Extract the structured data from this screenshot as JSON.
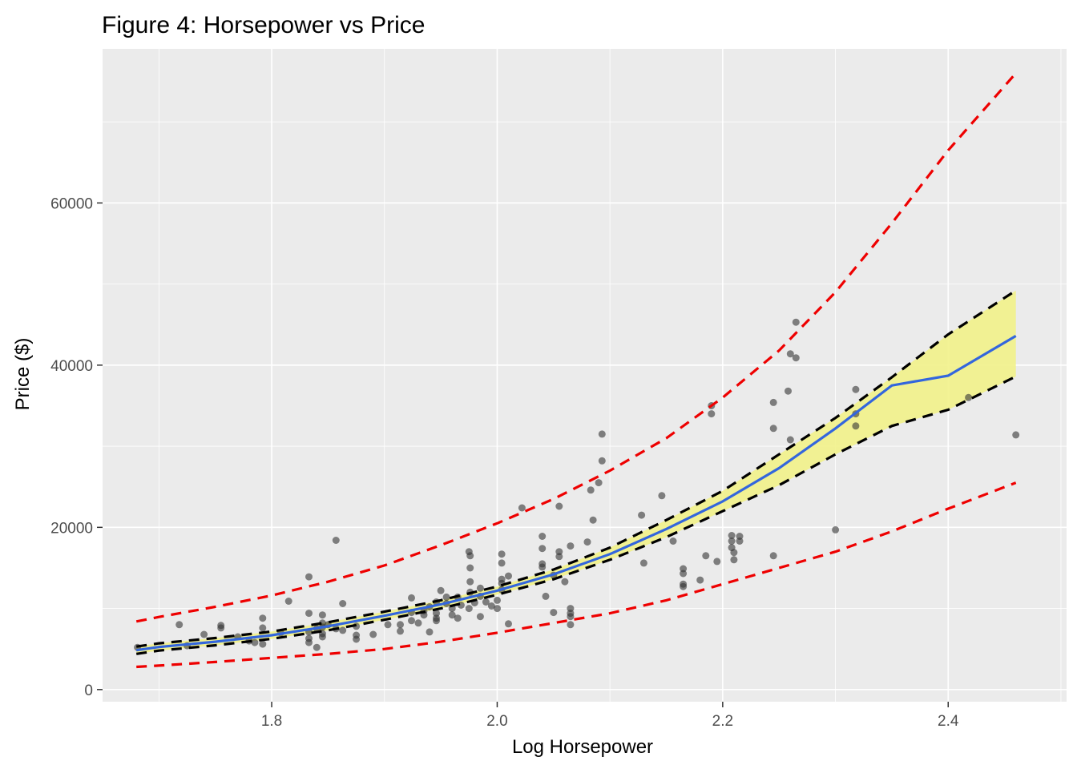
{
  "chart_data": {
    "type": "scatter",
    "title": "Figure 4: Horsepower vs Price",
    "xlabel": "Log Horsepower",
    "ylabel": "Price ($)",
    "xlim": [
      1.65,
      2.505
    ],
    "ylim": [
      -1500,
      79000
    ],
    "x_ticks": [
      1.8,
      2.0,
      2.2,
      2.4
    ],
    "x_tick_labels": [
      "1.8",
      "2.0",
      "2.2",
      "2.4"
    ],
    "y_ticks": [
      0,
      20000,
      40000,
      60000
    ],
    "y_tick_labels": [
      "0",
      "20000",
      "40000",
      "60000"
    ],
    "grid": true,
    "colors": {
      "panel": "#ebebeb",
      "grid": "#ffffff",
      "points": "#333333",
      "fit": "#3366dd",
      "confidence_band": "#f2f28a",
      "confidence_lines": "#000000",
      "prediction_lines": "#ee0000"
    },
    "points": [
      [
        1.681,
        5200
      ],
      [
        1.718,
        8000
      ],
      [
        1.725,
        5400
      ],
      [
        1.74,
        6800
      ],
      [
        1.755,
        7600
      ],
      [
        1.755,
        7900
      ],
      [
        1.77,
        6500
      ],
      [
        1.78,
        6000
      ],
      [
        1.785,
        5800
      ],
      [
        1.792,
        7600
      ],
      [
        1.792,
        8800
      ],
      [
        1.792,
        5600
      ],
      [
        1.808,
        7000
      ],
      [
        1.815,
        10900
      ],
      [
        1.833,
        13900
      ],
      [
        1.833,
        9400
      ],
      [
        1.833,
        7100
      ],
      [
        1.833,
        6300
      ],
      [
        1.833,
        5800
      ],
      [
        1.84,
        5200
      ],
      [
        1.84,
        7500
      ],
      [
        1.845,
        9200
      ],
      [
        1.845,
        8200
      ],
      [
        1.845,
        7700
      ],
      [
        1.845,
        6900
      ],
      [
        1.845,
        6500
      ],
      [
        1.85,
        8000
      ],
      [
        1.857,
        18400
      ],
      [
        1.857,
        7500
      ],
      [
        1.863,
        10600
      ],
      [
        1.863,
        7300
      ],
      [
        1.875,
        7800
      ],
      [
        1.875,
        6700
      ],
      [
        1.875,
        6200
      ],
      [
        1.89,
        6800
      ],
      [
        1.903,
        8000
      ],
      [
        1.914,
        8000
      ],
      [
        1.914,
        7200
      ],
      [
        1.924,
        11300
      ],
      [
        1.924,
        9500
      ],
      [
        1.924,
        8500
      ],
      [
        1.93,
        8200
      ],
      [
        1.935,
        9700
      ],
      [
        1.935,
        9200
      ],
      [
        1.94,
        10200
      ],
      [
        1.94,
        7100
      ],
      [
        1.946,
        10800
      ],
      [
        1.946,
        9400
      ],
      [
        1.946,
        8800
      ],
      [
        1.946,
        8500
      ],
      [
        1.95,
        12200
      ],
      [
        1.955,
        11400
      ],
      [
        1.955,
        10600
      ],
      [
        1.96,
        10000
      ],
      [
        1.96,
        9200
      ],
      [
        1.965,
        11400
      ],
      [
        1.965,
        8800
      ],
      [
        1.968,
        10400
      ],
      [
        1.975,
        10000
      ],
      [
        1.975,
        17000
      ],
      [
        1.976,
        16500
      ],
      [
        1.976,
        15000
      ],
      [
        1.976,
        13300
      ],
      [
        1.976,
        12000
      ],
      [
        1.98,
        10700
      ],
      [
        1.985,
        11500
      ],
      [
        1.985,
        12500
      ],
      [
        1.985,
        9000
      ],
      [
        1.99,
        10800
      ],
      [
        1.995,
        10300
      ],
      [
        2.0,
        10000
      ],
      [
        2.0,
        11000
      ],
      [
        2.004,
        13600
      ],
      [
        2.004,
        13100
      ],
      [
        2.004,
        16700
      ],
      [
        2.004,
        15600
      ],
      [
        2.004,
        12300
      ],
      [
        2.01,
        14000
      ],
      [
        2.01,
        8100
      ],
      [
        2.022,
        22400
      ],
      [
        2.04,
        18900
      ],
      [
        2.04,
        17400
      ],
      [
        2.04,
        15500
      ],
      [
        2.04,
        15100
      ],
      [
        2.043,
        11500
      ],
      [
        2.05,
        14100
      ],
      [
        2.05,
        9500
      ],
      [
        2.055,
        22600
      ],
      [
        2.055,
        17000
      ],
      [
        2.055,
        16400
      ],
      [
        2.06,
        13300
      ],
      [
        2.065,
        17700
      ],
      [
        2.065,
        10000
      ],
      [
        2.065,
        9400
      ],
      [
        2.065,
        9000
      ],
      [
        2.065,
        8000
      ],
      [
        2.08,
        18200
      ],
      [
        2.083,
        24600
      ],
      [
        2.085,
        20900
      ],
      [
        2.09,
        25500
      ],
      [
        2.093,
        28200
      ],
      [
        2.093,
        31500
      ],
      [
        2.128,
        21500
      ],
      [
        2.13,
        15600
      ],
      [
        2.146,
        23900
      ],
      [
        2.156,
        18300
      ],
      [
        2.165,
        14900
      ],
      [
        2.165,
        14300
      ],
      [
        2.165,
        13000
      ],
      [
        2.165,
        12700
      ],
      [
        2.18,
        13500
      ],
      [
        2.185,
        16500
      ],
      [
        2.19,
        35000
      ],
      [
        2.19,
        34000
      ],
      [
        2.195,
        15800
      ],
      [
        2.208,
        19000
      ],
      [
        2.208,
        18300
      ],
      [
        2.208,
        17500
      ],
      [
        2.21,
        16900
      ],
      [
        2.21,
        16000
      ],
      [
        2.215,
        18900
      ],
      [
        2.215,
        18300
      ],
      [
        2.245,
        16500
      ],
      [
        2.245,
        32200
      ],
      [
        2.245,
        35400
      ],
      [
        2.258,
        36800
      ],
      [
        2.26,
        30800
      ],
      [
        2.26,
        41400
      ],
      [
        2.265,
        40900
      ],
      [
        2.265,
        45300
      ],
      [
        2.3,
        19700
      ],
      [
        2.318,
        37000
      ],
      [
        2.318,
        34000
      ],
      [
        2.318,
        32500
      ],
      [
        2.418,
        36000
      ],
      [
        2.46,
        31400
      ]
    ],
    "fit": {
      "x": [
        1.68,
        1.7,
        1.75,
        1.8,
        1.85,
        1.9,
        1.95,
        2.0,
        2.05,
        2.1,
        2.15,
        2.2,
        2.25,
        2.3,
        2.35,
        2.4,
        2.46
      ],
      "y": [
        4850,
        5250,
        5900,
        6700,
        7800,
        9100,
        10500,
        12200,
        14200,
        16700,
        19800,
        23200,
        27300,
        32200,
        37500,
        38700,
        43600
      ]
    },
    "confidence_band": {
      "x": [
        1.68,
        1.7,
        1.75,
        1.8,
        1.85,
        1.9,
        1.95,
        2.0,
        2.05,
        2.1,
        2.15,
        2.2,
        2.25,
        2.3,
        2.35,
        2.4,
        2.46
      ],
      "lower": [
        4400,
        4800,
        5450,
        6250,
        7300,
        8600,
        10000,
        11700,
        13600,
        16000,
        18800,
        22000,
        25200,
        29000,
        32500,
        34500,
        38600
      ],
      "upper": [
        5300,
        5700,
        6350,
        7150,
        8300,
        9600,
        11000,
        12700,
        14800,
        17500,
        20900,
        24500,
        29000,
        33500,
        38500,
        43800,
        49200
      ]
    },
    "prediction_band": {
      "x": [
        1.68,
        1.7,
        1.75,
        1.8,
        1.85,
        1.9,
        1.95,
        2.0,
        2.05,
        2.1,
        2.15,
        2.2,
        2.25,
        2.3,
        2.35,
        2.4,
        2.46
      ],
      "lower": [
        2800,
        2950,
        3400,
        3900,
        4400,
        5000,
        5900,
        7000,
        8200,
        9400,
        11000,
        13000,
        15000,
        17000,
        19500,
        22300,
        25500
      ],
      "upper": [
        8400,
        8950,
        10200,
        11600,
        13300,
        15300,
        17800,
        20500,
        23500,
        27000,
        31000,
        36000,
        41800,
        49000,
        57500,
        66500,
        76000
      ]
    }
  }
}
